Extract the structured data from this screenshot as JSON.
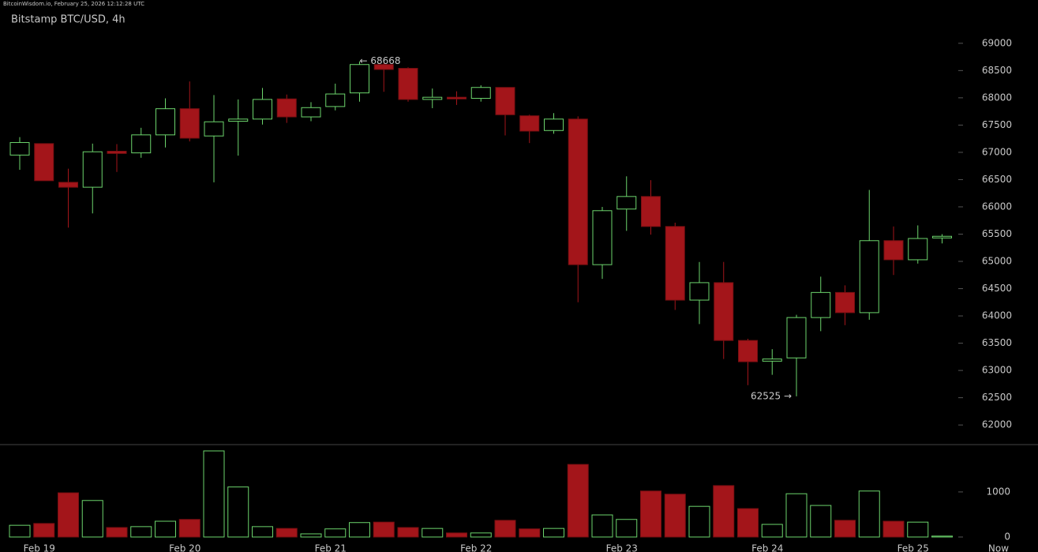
{
  "header": "BitcoinWisdom.io, February 25, 2026 12:12:28 UTC",
  "chart_data": {
    "type": "candlestick",
    "title": "Bitstamp BTC/USD, 4h",
    "categories": [
      null,
      "Feb 19",
      null,
      null,
      null,
      null,
      null,
      "Feb 20",
      null,
      null,
      null,
      null,
      null,
      "Feb 21",
      null,
      null,
      null,
      null,
      null,
      "Feb 22",
      null,
      null,
      null,
      null,
      null,
      "Feb 23",
      null,
      null,
      null,
      null,
      null,
      "Feb 24",
      null,
      null,
      null,
      null,
      null,
      "Feb 25",
      null
    ],
    "now_label": "Now",
    "open": [
      66950,
      67160,
      66450,
      66360,
      67020,
      66990,
      67320,
      67800,
      67300,
      67570,
      67610,
      67980,
      67650,
      67840,
      68090,
      68610,
      68540,
      67970,
      68010,
      67990,
      68190,
      67670,
      67400,
      67610,
      64940,
      65960,
      66190,
      65640,
      64290,
      64610,
      63550,
      63170,
      63230,
      63970,
      64430,
      64060,
      65380,
      65030,
      65430
    ],
    "high": [
      67280,
      67160,
      66700,
      67160,
      67150,
      67450,
      67990,
      68300,
      68050,
      67970,
      68180,
      68060,
      67920,
      68260,
      68668,
      68640,
      68560,
      68170,
      68120,
      68230,
      68190,
      67690,
      67720,
      67660,
      66000,
      66560,
      66490,
      65710,
      64990,
      64990,
      63580,
      63390,
      64020,
      64720,
      64560,
      66310,
      65640,
      65660,
      65500
    ],
    "low": [
      66680,
      66480,
      65620,
      65880,
      66640,
      66900,
      67090,
      67200,
      66450,
      66940,
      67510,
      67540,
      67570,
      67770,
      67930,
      68110,
      67930,
      67810,
      67870,
      67930,
      67310,
      67170,
      67340,
      64250,
      64680,
      65560,
      65490,
      64110,
      63850,
      63210,
      62730,
      62920,
      62525,
      63720,
      63830,
      63930,
      64750,
      64960,
      65330
    ],
    "close": [
      67180,
      66480,
      66360,
      67010,
      66980,
      67320,
      67800,
      67260,
      67560,
      67610,
      67970,
      67650,
      67820,
      68070,
      68610,
      68520,
      67970,
      68010,
      67980,
      68190,
      67690,
      67390,
      67610,
      64940,
      65930,
      66190,
      65640,
      64290,
      64610,
      63550,
      63160,
      63210,
      63970,
      64430,
      64060,
      65380,
      65030,
      65420,
      65460
    ],
    "volume": [
      260,
      300,
      980,
      810,
      210,
      230,
      350,
      390,
      1910,
      1110,
      230,
      190,
      70,
      180,
      320,
      330,
      210,
      190,
      90,
      90,
      370,
      180,
      190,
      1610,
      490,
      390,
      1020,
      950,
      680,
      1140,
      630,
      280,
      960,
      700,
      370,
      1020,
      350,
      330,
      20
    ],
    "up_color": "#6cd46c",
    "down_color": "#a3151a",
    "ylim": [
      61640,
      69620
    ],
    "yticks": [
      62000,
      62500,
      63000,
      63500,
      64000,
      64500,
      65000,
      65500,
      66000,
      66500,
      67000,
      67500,
      68000,
      68500,
      69000
    ],
    "volume_ylim": [
      0,
      2050
    ],
    "volume_yticks": [
      0,
      1000
    ],
    "annotations": [
      {
        "label": "← 68668",
        "value": 68668
      },
      {
        "label": "62525 →",
        "value": 62525
      }
    ]
  }
}
